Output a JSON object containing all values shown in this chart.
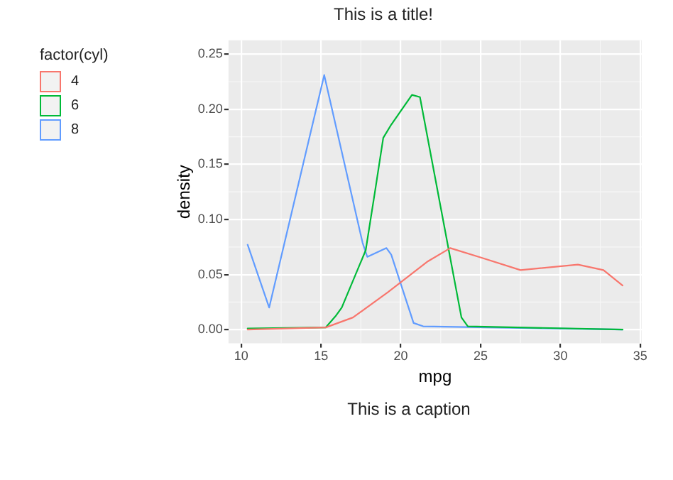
{
  "chart_data": {
    "type": "line",
    "title": "This is a title!",
    "xlabel": "mpg",
    "ylabel": "density",
    "legend_title": "factor(cyl)",
    "annotations": [
      "This is a caption"
    ],
    "xlim": [
      9.2,
      35.1
    ],
    "xticks": [
      10,
      15,
      20,
      25,
      30,
      35
    ],
    "ylim": [
      -0.0125,
      0.2625
    ],
    "yticks": [
      {
        "value": 0,
        "label": "0.00"
      },
      0.05,
      {
        "value": 0.1,
        "label": "0.10"
      },
      0.15,
      {
        "value": 0.2,
        "label": "0.20"
      },
      0.25
    ],
    "grid": true,
    "legend": "top left",
    "marker": "none",
    "line_style": "solid",
    "series": [
      {
        "name": "4",
        "color": "#f8766d",
        "x": [
          10.4,
          15.3,
          17.0,
          19.2,
          21.7,
          23.1,
          25.1,
          27.5,
          31.1,
          32.7,
          33.9
        ],
        "values": [
          0,
          0.002,
          0.011,
          0.034,
          0.062,
          0.074,
          0.065,
          0.054,
          0.059,
          0.054,
          0.04
        ]
      },
      {
        "name": "6",
        "color": "#00ba38",
        "x": [
          10.4,
          15.3,
          15.9,
          16.3,
          17.8,
          18.4,
          18.9,
          19.4,
          20.7,
          21.2,
          22.5,
          23.8,
          24.2,
          33.9
        ],
        "values": [
          0.001,
          0.002,
          0.012,
          0.02,
          0.072,
          0.127,
          0.174,
          0.186,
          0.213,
          0.211,
          0.111,
          0.011,
          0.003,
          0
        ]
      },
      {
        "name": "8",
        "color": "#619cff",
        "x": [
          10.4,
          11.75,
          15.2,
          17.6,
          17.9,
          19.1,
          19.4,
          20.8,
          21.4,
          33.9
        ],
        "values": [
          0.077,
          0.02,
          0.231,
          0.079,
          0.066,
          0.074,
          0.068,
          0.006,
          0.003,
          0
        ]
      }
    ]
  }
}
